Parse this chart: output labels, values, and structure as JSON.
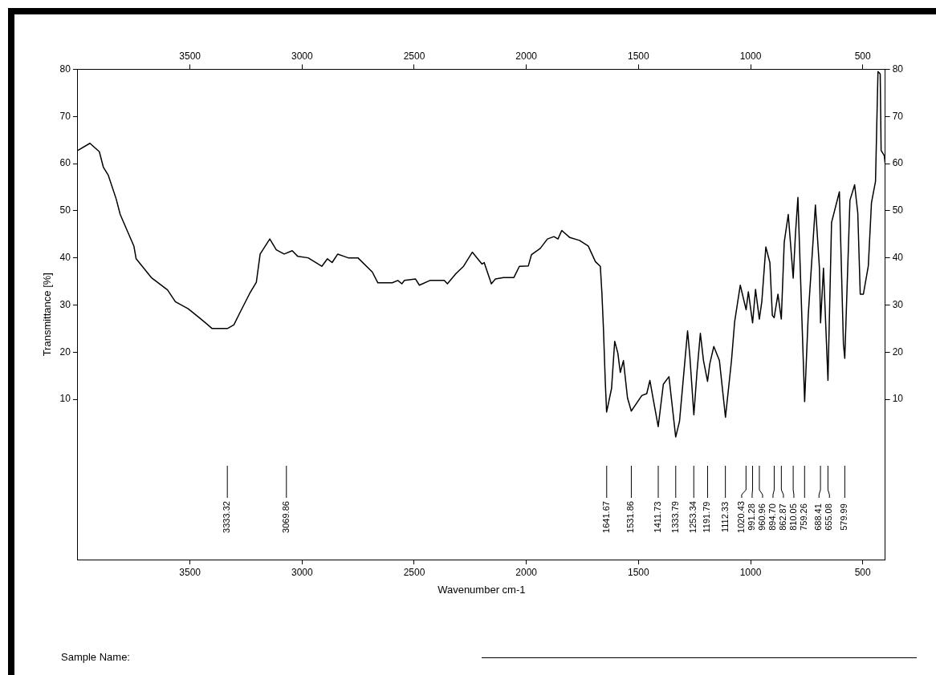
{
  "chart_data": {
    "type": "line",
    "xlabel": "Wavenumber cm-1",
    "ylabel": "Transmittance [%]",
    "x": [
      4000,
      3946,
      3904,
      3886,
      3864,
      3829,
      3811,
      3750,
      3740,
      3672,
      3600,
      3565,
      3508,
      3458,
      3401,
      3333,
      3304,
      3279,
      3233,
      3204,
      3187,
      3144,
      3115,
      3080,
      3044,
      3019,
      2973,
      2912,
      2887,
      2866,
      2841,
      2812,
      2794,
      2751,
      2687,
      2662,
      2598,
      2573,
      2555,
      2544,
      2494,
      2477,
      2430,
      2366,
      2352,
      2313,
      2280,
      2241,
      2198,
      2188,
      2156,
      2138,
      2102,
      2056,
      2031,
      1991,
      1977,
      1938,
      1906,
      1877,
      1859,
      1842,
      1806,
      1763,
      1724,
      1692,
      1670,
      1663,
      1656,
      1648,
      1642,
      1620,
      1606,
      1592,
      1581,
      1567,
      1549,
      1532,
      1485,
      1463,
      1449,
      1431,
      1412,
      1389,
      1364,
      1334,
      1317,
      1296,
      1281,
      1271,
      1253,
      1239,
      1224,
      1210,
      1192,
      1182,
      1164,
      1139,
      1112,
      1085,
      1071,
      1046,
      1020,
      1010,
      991,
      978,
      961,
      950,
      932,
      914,
      903,
      895,
      878,
      863,
      850,
      832,
      810,
      800,
      789,
      779,
      759,
      743,
      711,
      693,
      688,
      675,
      655,
      639,
      604,
      586,
      580,
      557,
      536,
      522,
      511,
      497,
      475,
      461,
      443,
      432,
      422,
      418,
      404,
      400
    ],
    "series": [
      {
        "color": "#000000",
        "values": [
          62.8,
          64.3,
          62.5,
          59.2,
          57.5,
          52.5,
          49.2,
          42.5,
          39.8,
          35.8,
          33.2,
          30.7,
          29.2,
          27.3,
          25.0,
          25.0,
          25.8,
          28.2,
          32.5,
          34.8,
          40.8,
          44.0,
          41.7,
          40.8,
          41.5,
          40.3,
          40.0,
          38.2,
          39.8,
          39.0,
          40.8,
          40.3,
          40.0,
          40.0,
          37.0,
          34.7,
          34.7,
          35.2,
          34.5,
          35.2,
          35.5,
          34.2,
          35.2,
          35.2,
          34.5,
          36.7,
          38.2,
          41.2,
          38.7,
          39.0,
          34.5,
          35.5,
          35.8,
          35.8,
          38.2,
          38.3,
          40.7,
          42.0,
          44.0,
          44.5,
          44.0,
          45.8,
          44.3,
          43.7,
          42.5,
          39.2,
          38.2,
          32.5,
          24.8,
          13.7,
          7.3,
          12.3,
          22.3,
          19.8,
          15.7,
          18.2,
          10.3,
          7.5,
          10.8,
          11.2,
          14.0,
          9.2,
          4.2,
          13.2,
          14.8,
          2.0,
          5.3,
          16.5,
          24.5,
          19.2,
          6.7,
          15.8,
          24.0,
          18.2,
          13.8,
          17.5,
          21.2,
          18.2,
          6.2,
          18.3,
          26.5,
          34.2,
          29.0,
          32.8,
          26.2,
          33.3,
          27.0,
          30.7,
          42.3,
          39.0,
          27.8,
          27.3,
          32.3,
          27.0,
          43.3,
          49.2,
          35.7,
          45.0,
          52.8,
          38.3,
          9.5,
          27.8,
          51.2,
          37.8,
          26.2,
          37.8,
          14.0,
          47.5,
          54.0,
          21.7,
          18.7,
          52.2,
          55.5,
          49.5,
          32.3,
          32.3,
          38.3,
          51.7,
          56.2,
          79.5,
          79.0,
          62.8,
          61.7,
          60.0
        ]
      }
    ],
    "xlim": [
      4000,
      400
    ],
    "xticks": [
      3500,
      3000,
      2500,
      2000,
      1500,
      1000,
      500
    ],
    "x2lim": [
      4000,
      400
    ],
    "x2ticks": [
      3500,
      3000,
      2500,
      2000,
      1500,
      1000,
      500
    ],
    "ylim": [
      -24,
      80
    ],
    "yticks": [
      10,
      20,
      30,
      40,
      50,
      60,
      70,
      80
    ],
    "y2lim": [
      -24,
      80
    ],
    "y2ticks": [
      10,
      20,
      30,
      40,
      50,
      60,
      70,
      80
    ],
    "grid": false,
    "legend": false,
    "marker": "none",
    "line_style": "solid",
    "ref_lines": [
      {
        "axis": "x",
        "value": 3333.32,
        "label": "3333.32"
      },
      {
        "axis": "x",
        "value": 3069.86,
        "label": "3069.86"
      },
      {
        "axis": "x",
        "value": 1641.67,
        "label": "1641.67"
      },
      {
        "axis": "x",
        "value": 1531.86,
        "label": "1531.86"
      },
      {
        "axis": "x",
        "value": 1411.73,
        "label": "1411.73"
      },
      {
        "axis": "x",
        "value": 1333.79,
        "label": "1333.79"
      },
      {
        "axis": "x",
        "value": 1253.34,
        "label": "1253.34"
      },
      {
        "axis": "x",
        "value": 1191.79,
        "label": "1191.79"
      },
      {
        "axis": "x",
        "value": 1112.33,
        "label": "1112.33"
      },
      {
        "axis": "x",
        "value": 1020.43,
        "label": "1020.43"
      },
      {
        "axis": "x",
        "value": 991.28,
        "label": "991.28"
      },
      {
        "axis": "x",
        "value": 960.96,
        "label": "960.96"
      },
      {
        "axis": "x",
        "value": 894.7,
        "label": "894.70"
      },
      {
        "axis": "x",
        "value": 862.87,
        "label": "862.87"
      },
      {
        "axis": "x",
        "value": 810.05,
        "label": "810.05"
      },
      {
        "axis": "x",
        "value": 759.26,
        "label": "759.26"
      },
      {
        "axis": "x",
        "value": 688.41,
        "label": "688.41"
      },
      {
        "axis": "x",
        "value": 655.08,
        "label": "655.08"
      },
      {
        "axis": "x",
        "value": 579.99,
        "label": "579.99"
      }
    ],
    "annotations": [
      "Sample Name:"
    ]
  }
}
